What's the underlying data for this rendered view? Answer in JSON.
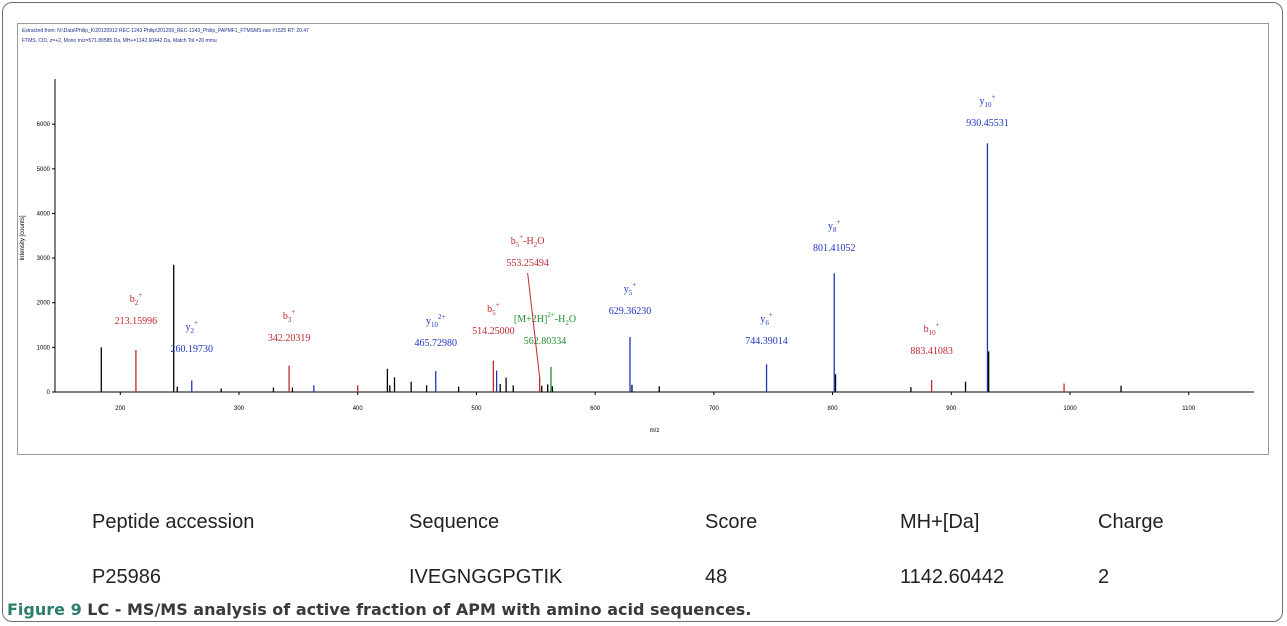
{
  "header": {
    "line1": "Extracted from: N:\\Data\\Philip_K\\20120912 REC-1243 Philip\\201209_REC-1243_Philip_PAPMF1_FTMSMS.raw  #1525  RT: 20.47",
    "line2": "FTMS, CID, z=+2, Mono m/z=571.80585 Da, MH+=1142.60442 Da, Match Tol.=20 mmu"
  },
  "chart_data": {
    "type": "bar",
    "xlabel": "m/z",
    "ylabel": "Intensity [counts]",
    "xlim": [
      145,
      1155
    ],
    "ylim": [
      0,
      6900
    ],
    "xticks": [
      200,
      300,
      400,
      500,
      600,
      700,
      800,
      900,
      1000,
      1100
    ],
    "yticks": [
      0,
      1000,
      2000,
      3000,
      4000,
      5000,
      6000
    ],
    "colors": {
      "b": "#c0282d",
      "y": "#1f35c0",
      "precursor": "#1f8f2f",
      "unassigned": "#000000"
    },
    "peaks": [
      {
        "mz": 184.0,
        "intensity": 1000,
        "ion": "unassigned"
      },
      {
        "mz": 213.16,
        "intensity": 940,
        "ion": "b"
      },
      {
        "mz": 245.0,
        "intensity": 2850,
        "ion": "unassigned"
      },
      {
        "mz": 248.0,
        "intensity": 120,
        "ion": "unassigned"
      },
      {
        "mz": 260.2,
        "intensity": 260,
        "ion": "y"
      },
      {
        "mz": 285.0,
        "intensity": 80,
        "ion": "unassigned"
      },
      {
        "mz": 329.0,
        "intensity": 100,
        "ion": "unassigned"
      },
      {
        "mz": 342.2,
        "intensity": 590,
        "ion": "b"
      },
      {
        "mz": 345.0,
        "intensity": 100,
        "ion": "unassigned"
      },
      {
        "mz": 363.0,
        "intensity": 150,
        "ion": "y"
      },
      {
        "mz": 400.0,
        "intensity": 150,
        "ion": "b"
      },
      {
        "mz": 425.0,
        "intensity": 520,
        "ion": "unassigned"
      },
      {
        "mz": 427.0,
        "intensity": 150,
        "ion": "unassigned"
      },
      {
        "mz": 431.0,
        "intensity": 330,
        "ion": "unassigned"
      },
      {
        "mz": 445.0,
        "intensity": 230,
        "ion": "unassigned"
      },
      {
        "mz": 458.0,
        "intensity": 150,
        "ion": "unassigned"
      },
      {
        "mz": 465.73,
        "intensity": 470,
        "ion": "y"
      },
      {
        "mz": 485.0,
        "intensity": 120,
        "ion": "unassigned"
      },
      {
        "mz": 514.25,
        "intensity": 700,
        "ion": "b"
      },
      {
        "mz": 517.0,
        "intensity": 480,
        "ion": "y"
      },
      {
        "mz": 520.0,
        "intensity": 180,
        "ion": "unassigned"
      },
      {
        "mz": 525.0,
        "intensity": 320,
        "ion": "unassigned"
      },
      {
        "mz": 531.0,
        "intensity": 150,
        "ion": "unassigned"
      },
      {
        "mz": 553.25,
        "intensity": 330,
        "ion": "b"
      },
      {
        "mz": 555.0,
        "intensity": 140,
        "ion": "unassigned"
      },
      {
        "mz": 560.0,
        "intensity": 170,
        "ion": "unassigned"
      },
      {
        "mz": 562.8,
        "intensity": 560,
        "ion": "precursor"
      },
      {
        "mz": 564.0,
        "intensity": 130,
        "ion": "unassigned"
      },
      {
        "mz": 629.36,
        "intensity": 1230,
        "ion": "y"
      },
      {
        "mz": 631.0,
        "intensity": 160,
        "ion": "unassigned"
      },
      {
        "mz": 654.0,
        "intensity": 130,
        "ion": "unassigned"
      },
      {
        "mz": 744.39,
        "intensity": 620,
        "ion": "y"
      },
      {
        "mz": 801.41,
        "intensity": 2660,
        "ion": "y"
      },
      {
        "mz": 802.5,
        "intensity": 400,
        "ion": "unassigned"
      },
      {
        "mz": 866.0,
        "intensity": 110,
        "ion": "unassigned"
      },
      {
        "mz": 883.41,
        "intensity": 270,
        "ion": "b"
      },
      {
        "mz": 912.0,
        "intensity": 230,
        "ion": "unassigned"
      },
      {
        "mz": 930.46,
        "intensity": 5570,
        "ion": "y"
      },
      {
        "mz": 931.5,
        "intensity": 910,
        "ion": "unassigned"
      },
      {
        "mz": 995.0,
        "intensity": 190,
        "ion": "b"
      },
      {
        "mz": 1043.0,
        "intensity": 140,
        "ion": "unassigned"
      }
    ],
    "annotations": [
      {
        "ion": "b",
        "label_base": "b",
        "sub": "2",
        "sup": "+",
        "mass": "213.15996",
        "peak_mz": 213.16
      },
      {
        "ion": "y",
        "label_base": "y",
        "sub": "2",
        "sup": "+",
        "mass": "260.19730",
        "peak_mz": 260.2
      },
      {
        "ion": "b",
        "label_base": "b",
        "sub": "3",
        "sup": "+",
        "mass": "342.20319",
        "peak_mz": 342.2
      },
      {
        "ion": "y",
        "label_base": "y",
        "sub": "10",
        "sup": "2+",
        "mass": "465.72980",
        "peak_mz": 465.73
      },
      {
        "ion": "b",
        "label_base": "b",
        "sub": "5",
        "sup": "+",
        "mass": "514.25000",
        "peak_mz": 514.25
      },
      {
        "ion": "b",
        "label_base": "b",
        "sub": "5",
        "sup": "+",
        "suffix_base": "-H",
        "suffix_sub": "2",
        "suffix_end": "O",
        "mass": "553.25494",
        "peak_mz": 553.25
      },
      {
        "ion": "precursor",
        "label_base": "[M+2H]",
        "sub": "",
        "sup": "2+",
        "suffix_base": "-H",
        "suffix_sub": "2",
        "suffix_end": "O",
        "mass": "562.80334",
        "peak_mz": 562.8
      },
      {
        "ion": "y",
        "label_base": "y",
        "sub": "5",
        "sup": "+",
        "mass": "629.36230",
        "peak_mz": 629.36
      },
      {
        "ion": "y",
        "label_base": "y",
        "sub": "6",
        "sup": "+",
        "mass": "744.39014",
        "peak_mz": 744.39
      },
      {
        "ion": "y",
        "label_base": "y",
        "sub": "8",
        "sup": "+",
        "mass": "801.41052",
        "peak_mz": 801.41
      },
      {
        "ion": "b",
        "label_base": "b",
        "sub": "10",
        "sup": "+",
        "mass": "883.41083",
        "peak_mz": 883.41
      },
      {
        "ion": "y",
        "label_base": "y",
        "sub": "10",
        "sup": "+",
        "mass": "930.45531",
        "peak_mz": 930.46
      }
    ]
  },
  "table": {
    "headers": [
      "Peptide accession",
      "Sequence",
      "Score",
      "MH+[Da]",
      "Charge"
    ],
    "row": [
      "P25986",
      "IVEGNGGPGTIK",
      "48",
      "1142.60442",
      "2"
    ]
  },
  "caption": {
    "figure": "Figure 9",
    "text": " LC - MS/MS analysis of active fraction of APM with amino acid sequences."
  }
}
